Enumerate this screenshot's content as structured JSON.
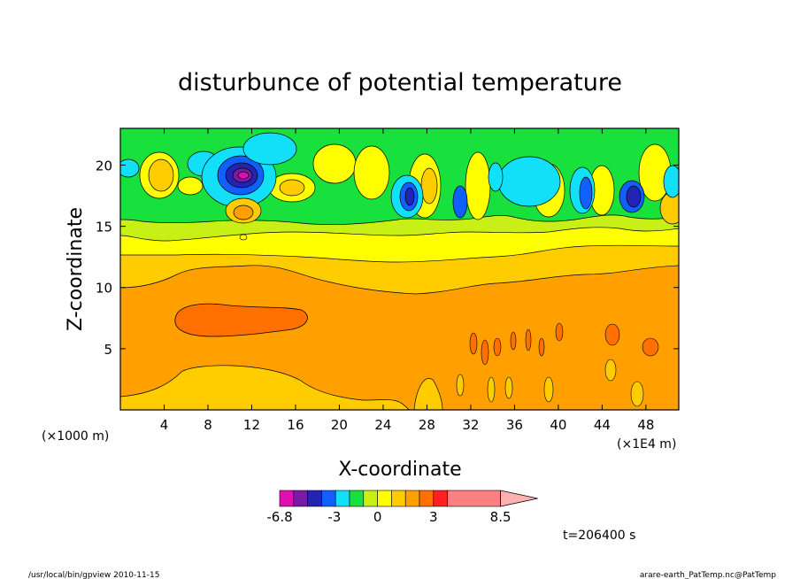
{
  "chart_data": {
    "type": "heatmap",
    "title": "disturbunce of potential temperature",
    "xlabel": "X-coordinate",
    "ylabel": "Z-coordinate",
    "x_unit": "(×1000 m)",
    "x_unit_right": "(×1E4 m)",
    "xlim": [
      0,
      51
    ],
    "ylim": [
      0,
      23
    ],
    "x_ticks": [
      4,
      8,
      12,
      16,
      20,
      24,
      28,
      32,
      36,
      40,
      44,
      48
    ],
    "y_ticks": [
      5,
      10,
      15,
      20
    ],
    "time_label": "t=206400 s",
    "colorbar": {
      "colors": [
        "#e010b0",
        "#7a1aa8",
        "#2424b4",
        "#1060ff",
        "#12dff8",
        "#18e03c",
        "#c8f016",
        "#ffff00",
        "#ffcc00",
        "#ffa000",
        "#ff7000",
        "#ff2020",
        "#ff8080",
        "#ffb0b0"
      ],
      "tick_labels": [
        "-6.8",
        "-3",
        "0",
        "3",
        "8.5"
      ],
      "tick_values": [
        -6.8,
        -3,
        0,
        3,
        8.5
      ],
      "min": -6.8,
      "max": 8.5
    },
    "bands": [
      {
        "z_range": [
          0,
          2
        ],
        "value": 1.5,
        "note": "yellow-orange near ground"
      },
      {
        "z_range": [
          2,
          10
        ],
        "value": 2.5,
        "note": "orange layer"
      },
      {
        "z_range": [
          10,
          13
        ],
        "value": 1.5,
        "note": "light orange layer"
      },
      {
        "z_range": [
          13,
          15
        ],
        "value": 0.5,
        "note": "yellow layer"
      },
      {
        "z_range": [
          15,
          23
        ],
        "value": -0.5,
        "note": "green upper layer with waves"
      }
    ],
    "features": [
      {
        "x": 11.5,
        "z": 19,
        "value": -6.0,
        "label": "strong cold core"
      },
      {
        "x": 12,
        "z": 16.5,
        "value": 2.5,
        "label": "warm core"
      },
      {
        "x": 11,
        "z": 7.3,
        "value": 3.5,
        "label": "elongated warm maximum"
      },
      {
        "x": 26,
        "z": 17,
        "value": -4.0,
        "label": "cold wave cell"
      },
      {
        "x": 46.5,
        "z": 17.5,
        "value": -4.0,
        "label": "cold wave cell"
      }
    ]
  },
  "footer": {
    "left": "/usr/local/bin/gpview  2010-11-15",
    "right": "arare-earth_PatTemp.nc@PatTemp"
  }
}
